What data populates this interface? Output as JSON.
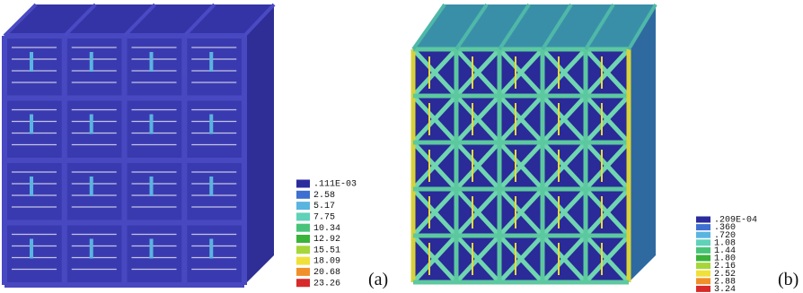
{
  "panels": [
    {
      "label": "(a)",
      "legend": [
        {
          "text": ".111E-03",
          "color": "#2b2b9e"
        },
        {
          "text": "2.58",
          "color": "#3f6fd0"
        },
        {
          "text": "5.17",
          "color": "#5ab4e0"
        },
        {
          "text": "7.75",
          "color": "#5fd2b8"
        },
        {
          "text": "10.34",
          "color": "#48c47a"
        },
        {
          "text": "12.92",
          "color": "#3ab33a"
        },
        {
          "text": "15.51",
          "color": "#a6d63a"
        },
        {
          "text": "18.09",
          "color": "#f0e03a"
        },
        {
          "text": "20.68",
          "color": "#f0902a"
        },
        {
          "text": "23.26",
          "color": "#d82a2a"
        }
      ]
    },
    {
      "label": "(b)",
      "legend": [
        {
          "text": ".209E-04",
          "color": "#2b2b9e"
        },
        {
          "text": ".360",
          "color": "#3f6fd0"
        },
        {
          "text": ".720",
          "color": "#5ab4e0"
        },
        {
          "text": "1.08",
          "color": "#5fd2b8"
        },
        {
          "text": "1.44",
          "color": "#48c47a"
        },
        {
          "text": "1.80",
          "color": "#3ab33a"
        },
        {
          "text": "2.16",
          "color": "#a6d63a"
        },
        {
          "text": "2.52",
          "color": "#f0e03a"
        },
        {
          "text": "2.88",
          "color": "#f0902a"
        },
        {
          "text": "3.24",
          "color": "#d82a2a"
        }
      ]
    }
  ]
}
